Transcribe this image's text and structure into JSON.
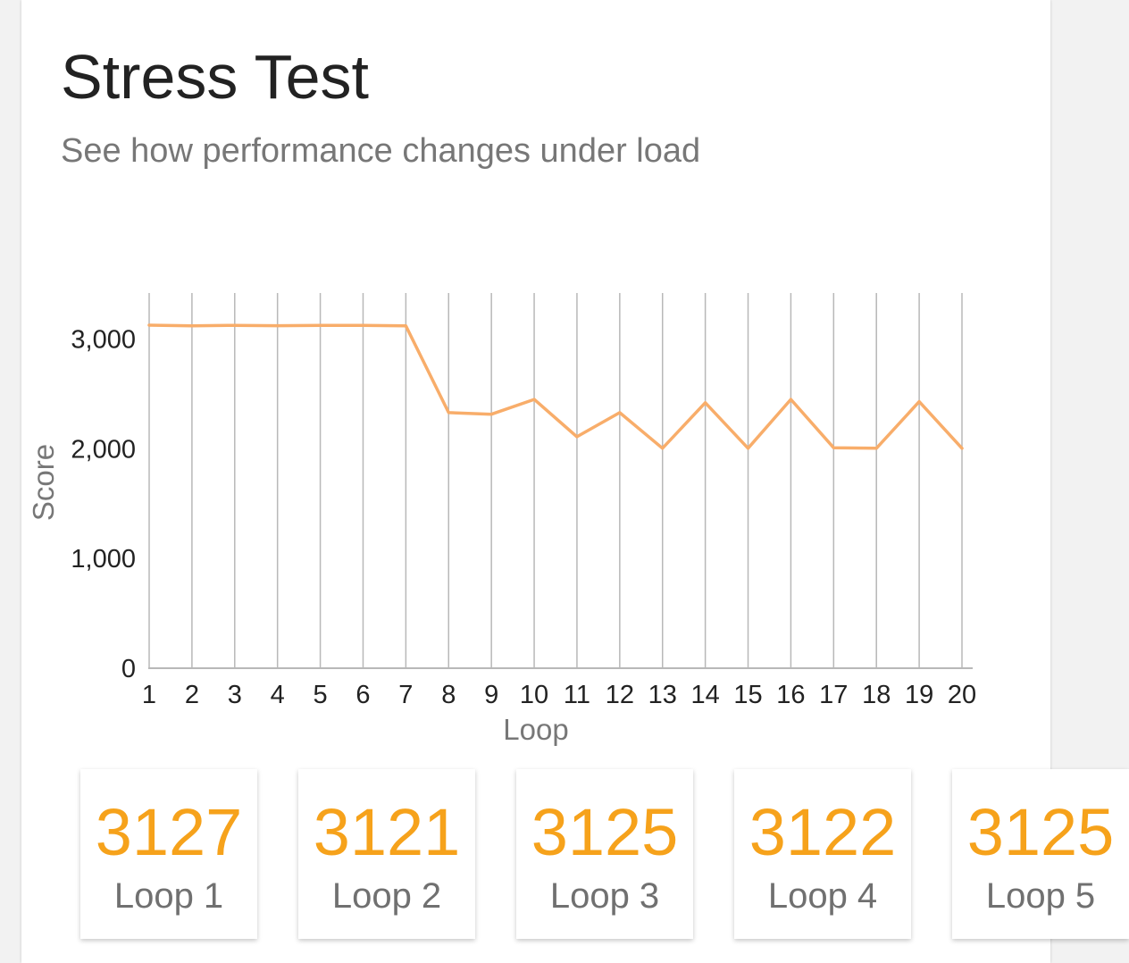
{
  "header": {
    "title": "Stress Test",
    "subtitle": "See how performance changes under load"
  },
  "colors": {
    "accent": "#f6a21b",
    "line": "#f8ad6a",
    "grid": "#b8b8b8",
    "text": "#222222",
    "muted": "#777777"
  },
  "chart_data": {
    "type": "line",
    "xlabel": "Loop",
    "ylabel": "Score",
    "x": [
      1,
      2,
      3,
      4,
      5,
      6,
      7,
      8,
      9,
      10,
      11,
      12,
      13,
      14,
      15,
      16,
      17,
      18,
      19,
      20
    ],
    "series": [
      {
        "values": [
          3127,
          3121,
          3125,
          3122,
          3125,
          3125,
          3120,
          2330,
          2315,
          2450,
          2110,
          2330,
          2005,
          2420,
          2005,
          2450,
          2010,
          2005,
          2430,
          2005
        ]
      }
    ],
    "y_ticks": [
      0,
      1000,
      2000,
      3000
    ],
    "y_tick_labels": [
      "0",
      "1,000",
      "2,000",
      "3,000"
    ],
    "ylim": [
      0,
      3420
    ],
    "grid": "vertical"
  },
  "tiles": [
    {
      "score": "3127",
      "label": "Loop 1"
    },
    {
      "score": "3121",
      "label": "Loop 2"
    },
    {
      "score": "3125",
      "label": "Loop 3"
    },
    {
      "score": "3122",
      "label": "Loop 4"
    },
    {
      "score": "3125",
      "label": "Loop 5"
    }
  ]
}
